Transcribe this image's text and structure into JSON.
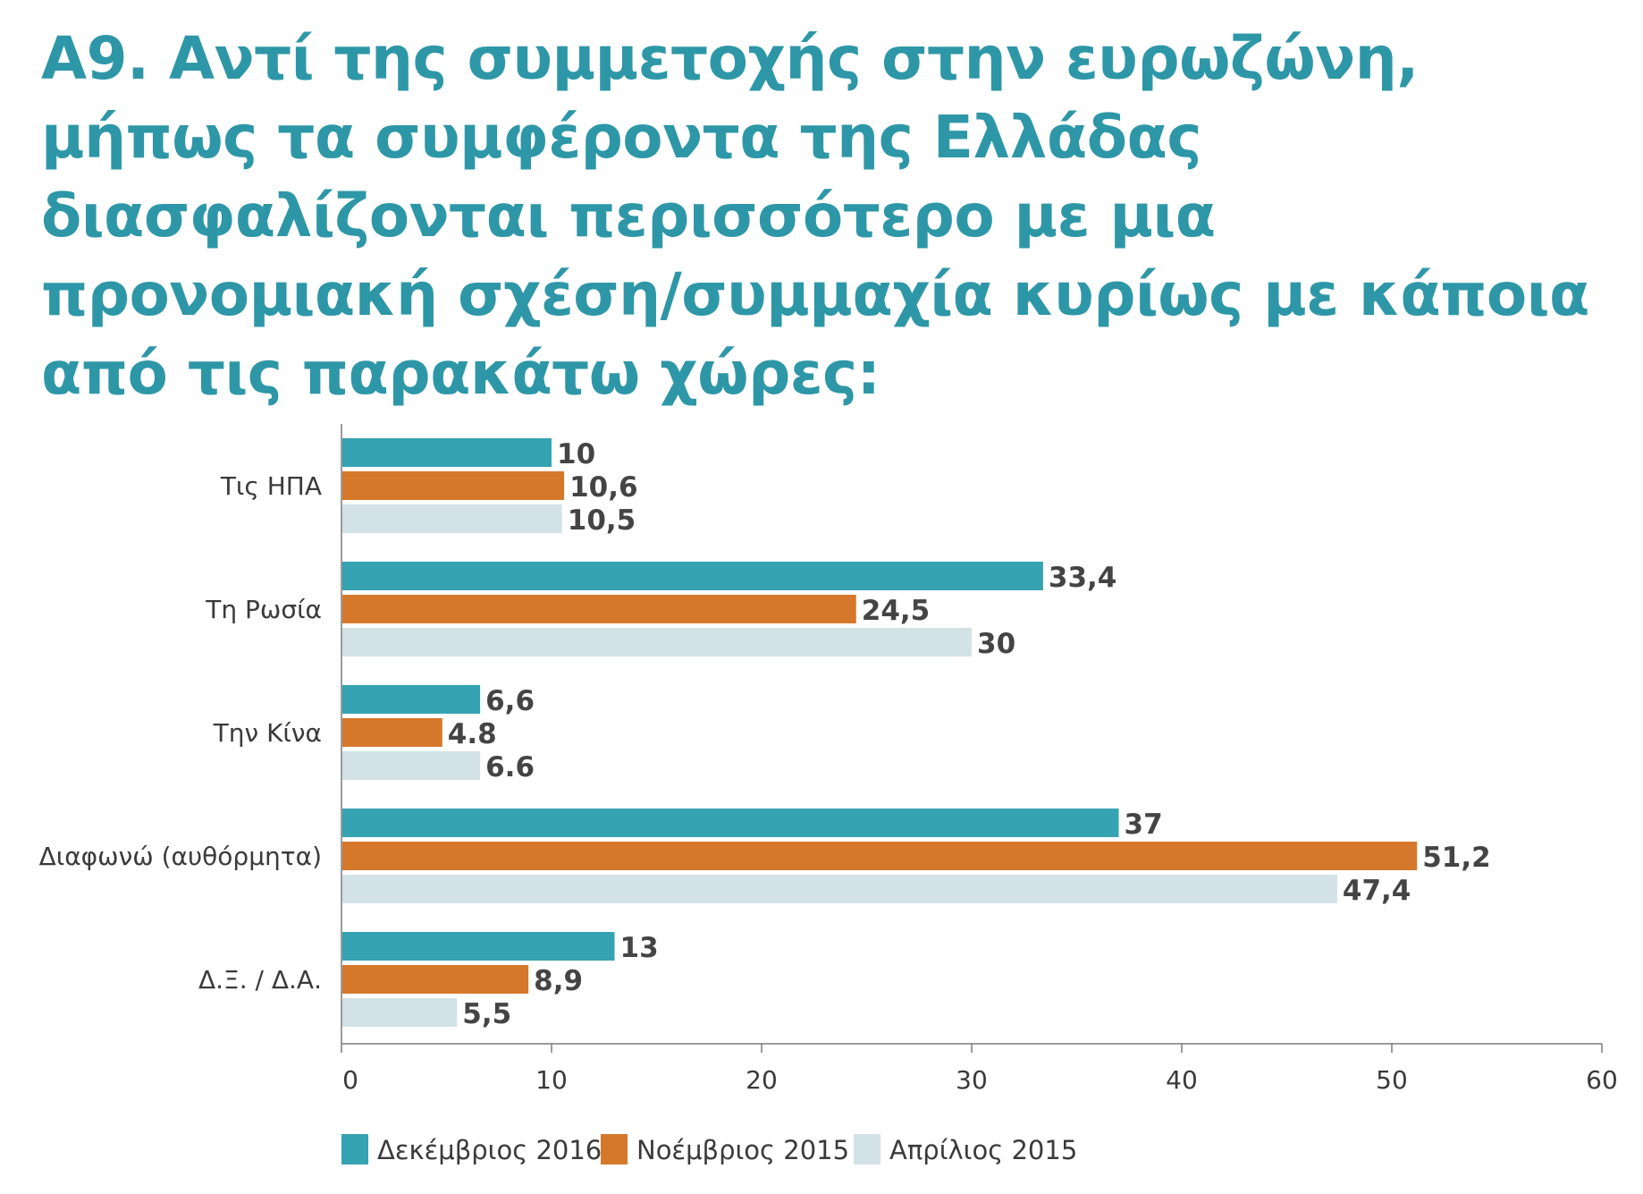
{
  "title": "Α9. Αντί της συμμετοχής στην ευρωζώνη, μήπως τα συμφέροντα της Ελλάδας διασφαλίζονται περισσότερο με μια προνομιακή σχέση/συμμαχία κυρίως με κάποια από τις παρακάτω χώρες:",
  "chart_data": {
    "type": "bar",
    "orientation": "horizontal",
    "categories": [
      "Τις ΗΠΑ",
      "Τη Ρωσία",
      "Την Κίνα",
      "Διαφωνώ (αυθόρμητα)",
      "Δ.Ξ. / Δ.Α."
    ],
    "series": [
      {
        "name": "Δεκέμβριος 2016",
        "color": "#35a3b1",
        "values": [
          10,
          33.4,
          6.6,
          37,
          13
        ],
        "labels": [
          "10",
          "33,4",
          "6,6",
          "37",
          "13"
        ]
      },
      {
        "name": "Νοέμβριος 2015",
        "color": "#d6782b",
        "values": [
          10.6,
          24.5,
          4.8,
          51.2,
          8.9
        ],
        "labels": [
          "10,6",
          "24,5",
          "4.8",
          "51,2",
          "8,9"
        ]
      },
      {
        "name": "Απρίλιος 2015",
        "color": "#d3e2e6",
        "values": [
          10.5,
          30,
          6.6,
          47.4,
          5.5
        ],
        "labels": [
          "10,5",
          "30",
          "6.6",
          "47,4",
          "5,5"
        ]
      }
    ],
    "xlim": [
      0,
      60
    ],
    "xticks": [
      0,
      10,
      20,
      30,
      40,
      50,
      60
    ],
    "legend_position": "bottom-left",
    "grid": false
  }
}
